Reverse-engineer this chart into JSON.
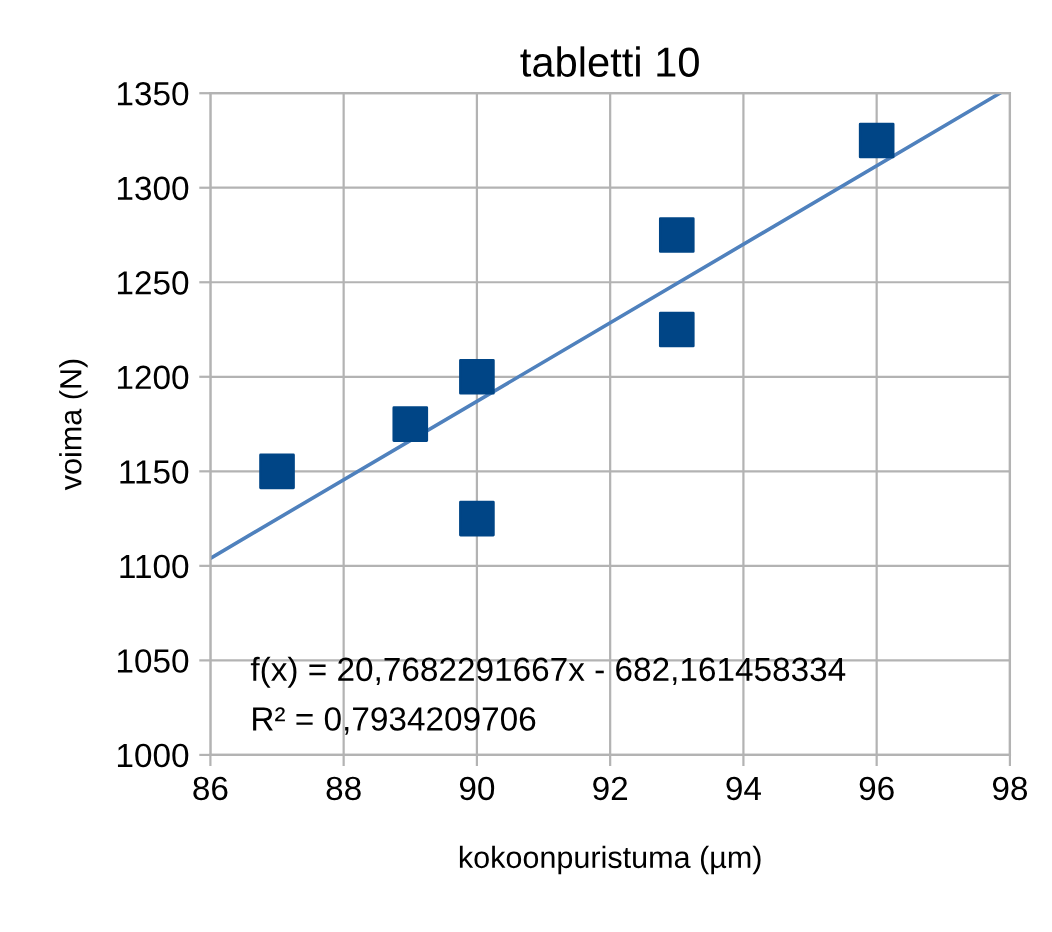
{
  "chart_data": {
    "type": "scatter",
    "title": "tabletti 10",
    "xlabel": "kokoonpuristuma (µm)",
    "ylabel": "voima (N)",
    "x": [
      87,
      89,
      90,
      90,
      93,
      93,
      96
    ],
    "series": [
      {
        "color": "#004586",
        "marker": "square",
        "values": [
          1150,
          1175,
          1200,
          1125,
          1275,
          1225,
          1325
        ]
      },
      {
        "type": "line",
        "color": "#4f81bd",
        "marker": "none",
        "x": [
          86,
          97.85
        ],
        "values": [
          1104,
          1350
        ]
      }
    ],
    "xlim": [
      86,
      98
    ],
    "xticks": [
      86,
      88,
      90,
      92,
      94,
      96,
      98
    ],
    "ylim": [
      1000,
      1350
    ],
    "yticks": [
      1000,
      1050,
      1100,
      1150,
      1200,
      1250,
      1300,
      1350
    ],
    "grid": true,
    "legend": false,
    "annotations": [
      "f(x) = 20,7682291667x - 682,161458334",
      "R² = 0,7934209706"
    ]
  }
}
